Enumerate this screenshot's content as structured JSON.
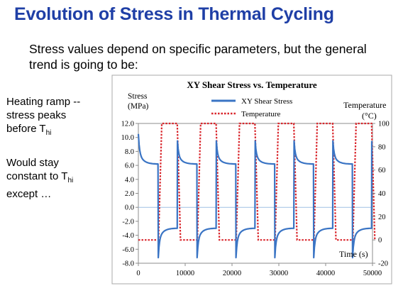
{
  "slide": {
    "title": "Evolution of Stress in Thermal Cycling",
    "intro_line1": "Stress values depend on specific parameters, but the general",
    "intro_line2": "trend is going to be:",
    "note1_line1": "Heating ramp --",
    "note1_line2": "stress peaks",
    "note1_line3_text": "before T",
    "note1_line3_sub": "hi",
    "note2_line1": "Would stay",
    "note2_line2_text": "constant to T",
    "note2_line2_sub": "hi",
    "note2_line3": "except …"
  },
  "chart_data": {
    "type": "line",
    "title": "XY Shear Stress vs. Temperature",
    "ylabel_line1": "Stress",
    "ylabel_line2": "(MPa)",
    "y2label_line1": "Temperature",
    "y2label_line2": "(°C)",
    "xlabel": "Time (s)",
    "xlim": [
      0,
      50000
    ],
    "ylim": [
      -8,
      12
    ],
    "y2lim": [
      -20,
      100
    ],
    "x_ticks": [
      0,
      10000,
      20000,
      30000,
      40000,
      50000
    ],
    "y_ticks": [
      "12.0",
      "10.0",
      "8.0",
      "6.0",
      "4.0",
      "2.0",
      "0.0",
      "-2.0",
      "-4.0",
      "-6.0",
      "-8.0"
    ],
    "y2_ticks": [
      100,
      80,
      60,
      40,
      20,
      0,
      -20
    ],
    "legend_position": "top-center",
    "zero_line": true,
    "series": [
      {
        "name": "XY Shear Stress",
        "axis": "left",
        "color": "#3a74c4",
        "style": "solid",
        "cycle_period": 8300,
        "cycle_start": 0,
        "hot_phase": {
          "start_value": 10.5,
          "drop_to": 7.2,
          "settle": 6.2
        },
        "cold_phase": {
          "start_value": -7.2,
          "rise_to": -3.8,
          "settle": -3.0
        },
        "x": [
          0,
          4200,
          4250,
          8300,
          8350,
          12500,
          12550,
          16600,
          16650,
          20800,
          20850,
          24900,
          24950,
          29100,
          29150,
          33200,
          33250,
          37400,
          37450,
          41500,
          41550,
          45700,
          45750,
          49800,
          49850
        ],
        "values": [
          10.5,
          6.2,
          -7.2,
          -3.0,
          9.5,
          6.2,
          -7.2,
          -3.0,
          9.5,
          6.2,
          -7.2,
          -3.0,
          9.5,
          6.2,
          -7.2,
          -3.0,
          9.5,
          6.2,
          -7.2,
          -3.0,
          9.5,
          6.2,
          -7.2,
          -3.0,
          9.5
        ]
      },
      {
        "name": "Temperature",
        "axis": "right",
        "color": "#d9262c",
        "style": "dotted",
        "x": [
          0,
          4300,
          5000,
          8300,
          9000,
          12600,
          13300,
          16600,
          17300,
          20900,
          21600,
          24900,
          25600,
          29200,
          29900,
          33200,
          33900,
          37500,
          38200,
          41500,
          42200,
          45800,
          46500,
          49800,
          50500
        ],
        "values": [
          0,
          0,
          100,
          100,
          0,
          0,
          100,
          100,
          0,
          0,
          100,
          100,
          0,
          0,
          100,
          100,
          0,
          0,
          100,
          100,
          0,
          0,
          100,
          100,
          0
        ]
      }
    ]
  }
}
